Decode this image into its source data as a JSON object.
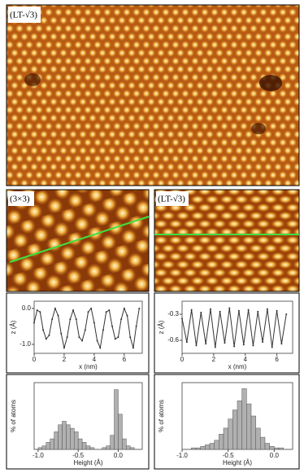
{
  "panels": [
    {
      "label": "(LT-√3)"
    },
    {
      "label": "(3×3)"
    },
    {
      "label": "(LT-√3)"
    }
  ],
  "chart_data": [
    {
      "type": "line",
      "xlabel": "x (nm)",
      "ylabel": "z (Å)",
      "color": "#333333",
      "x": [
        0,
        0.2,
        0.4,
        0.6,
        0.8,
        1.0,
        1.2,
        1.4,
        1.6,
        1.8,
        2.0,
        2.2,
        2.4,
        2.6,
        2.8,
        3.0,
        3.2,
        3.4,
        3.6,
        3.8,
        4.0,
        4.2,
        4.4,
        4.6,
        4.8,
        5.0,
        5.2,
        5.4,
        5.6,
        5.8,
        6.0,
        6.2,
        6.4,
        6.6,
        6.8,
        7.0
      ],
      "values": [
        -0.4,
        -0.05,
        -0.1,
        -0.6,
        -0.85,
        -0.75,
        -0.3,
        0.0,
        -0.2,
        -0.7,
        -1.1,
        -0.8,
        -0.3,
        -0.05,
        -0.3,
        -0.8,
        -0.9,
        -0.6,
        -0.1,
        0.0,
        -0.4,
        -0.9,
        -1.1,
        -0.6,
        -0.1,
        -0.05,
        -0.5,
        -0.85,
        -0.8,
        -0.3,
        0.0,
        -0.2,
        -0.8,
        -1.1,
        -0.5,
        0.0
      ],
      "xlim": [
        0,
        7.2
      ],
      "xticks": [
        0,
        2,
        4,
        6
      ],
      "ylim": [
        -1.25,
        0.2
      ],
      "yticks": [
        {
          "value": 0,
          "label": "0.0"
        },
        {
          "value": -1,
          "label": "-1.0"
        }
      ]
    },
    {
      "type": "line",
      "xlabel": "x (nm)",
      "ylabel": "z (Å)",
      "color": "#333333",
      "x": [
        0,
        0.3,
        0.6,
        0.9,
        1.2,
        1.5,
        1.8,
        2.1,
        2.4,
        2.7,
        3.0,
        3.3,
        3.6,
        3.9,
        4.2,
        4.5,
        4.8,
        5.1,
        5.4,
        5.7,
        6.0,
        6.3,
        6.6
      ],
      "values": [
        -0.35,
        -0.62,
        -0.25,
        -0.66,
        -0.28,
        -0.64,
        -0.24,
        -0.68,
        -0.27,
        -0.63,
        -0.23,
        -0.67,
        -0.26,
        -0.65,
        -0.25,
        -0.66,
        -0.27,
        -0.62,
        -0.24,
        -0.68,
        -0.26,
        -0.64,
        -0.3
      ],
      "xlim": [
        0,
        7
      ],
      "xticks": [
        0,
        2,
        4,
        6
      ],
      "ylim": [
        -0.75,
        -0.15
      ],
      "yticks": [
        -0.3,
        -0.6
      ]
    },
    {
      "type": "histogram",
      "xlabel": "Height (Å)",
      "ylabel": "% of atoms",
      "color": "#b0b0b0",
      "bins": [
        -1.0,
        -0.95,
        -0.9,
        -0.85,
        -0.8,
        -0.75,
        -0.7,
        -0.65,
        -0.6,
        -0.55,
        -0.5,
        -0.45,
        -0.4,
        -0.35,
        -0.3,
        -0.25,
        -0.2,
        -0.15,
        -0.1,
        -0.05,
        0.0,
        0.05,
        0.1,
        0.15,
        0.2,
        0.25
      ],
      "values": [
        0.5,
        1,
        2,
        3,
        5,
        7,
        8,
        7,
        6,
        5,
        3,
        2,
        1,
        0.5,
        0,
        0,
        0.5,
        1,
        4,
        17,
        10,
        3,
        1,
        0.5,
        0
      ],
      "xlim": [
        -1.05,
        0.3
      ],
      "xticks": [
        {
          "value": -1,
          "label": "-1.0"
        },
        -0.5,
        {
          "value": 0,
          "label": "0.0"
        }
      ],
      "ylim": [
        0,
        19
      ]
    },
    {
      "type": "histogram",
      "xlabel": "Height (Å)",
      "ylabel": "% of atoms",
      "color": "#b0b0b0",
      "bins": [
        -0.9,
        -0.85,
        -0.8,
        -0.75,
        -0.7,
        -0.65,
        -0.6,
        -0.55,
        -0.5,
        -0.45,
        -0.4,
        -0.35,
        -0.3,
        -0.25,
        -0.2,
        -0.15,
        -0.1,
        -0.05,
        0.0,
        0.05,
        0.1
      ],
      "values": [
        0.5,
        0.5,
        1,
        1.5,
        2,
        3,
        5,
        7,
        10,
        13,
        16,
        20,
        15,
        11,
        7,
        4,
        2,
        1,
        0.5,
        0.5
      ],
      "xlim": [
        -1.0,
        0.2
      ],
      "xticks": [
        {
          "value": -1,
          "label": "-1.0"
        },
        -0.5,
        {
          "value": 0,
          "label": "0.0"
        }
      ],
      "ylim": [
        0,
        22
      ]
    }
  ]
}
